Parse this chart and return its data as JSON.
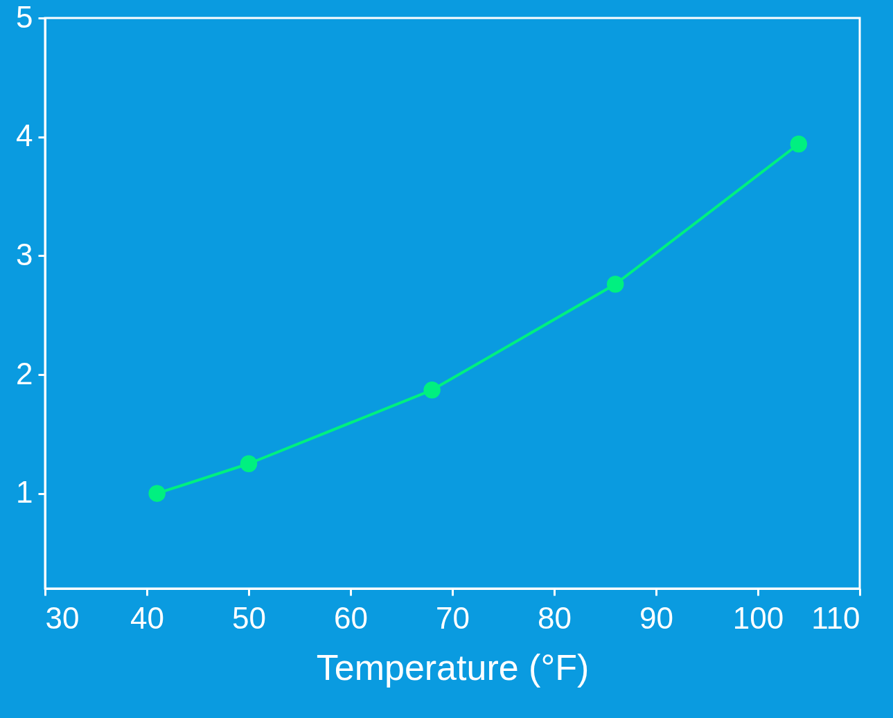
{
  "chart_data": {
    "type": "line",
    "xlabel": "Temperature (°F)",
    "x": [
      41,
      50,
      68,
      86,
      104
    ],
    "series": [
      {
        "color": "#00f080",
        "values": [
          1.0,
          1.25,
          1.87,
          2.76,
          3.94
        ]
      }
    ],
    "xlim": [
      30,
      110
    ],
    "xticks": [
      30,
      40,
      50,
      60,
      70,
      80,
      90,
      100,
      110
    ],
    "ylim": [
      0.2,
      5
    ],
    "yticks": [
      1,
      2,
      3,
      4,
      5
    ],
    "marker": "circle",
    "line_style": "solid",
    "grid": false,
    "legend": false
  }
}
